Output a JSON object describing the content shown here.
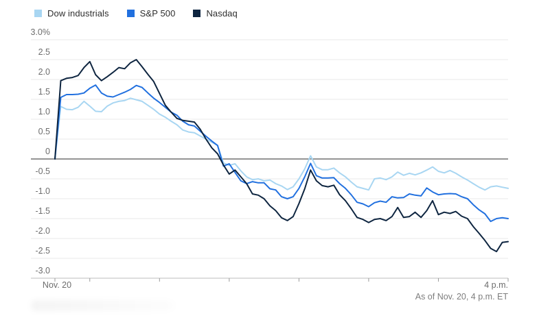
{
  "chart": {
    "legend": {
      "items": [
        {
          "label": "Dow industrials",
          "color": "#a8d6f2"
        },
        {
          "label": "S&P 500",
          "color": "#2170df"
        },
        {
          "label": "Nasdaq",
          "color": "#0e2540"
        }
      ]
    },
    "footnote": "As of Nov. 20, 4 p.m. ET"
  },
  "chart_data": {
    "type": "line",
    "title": "",
    "legend_position": "top-left",
    "grid": true,
    "x": {
      "unit": "minutes since 9:30 a.m. open",
      "interval_minutes": 5,
      "total_minutes": 390,
      "tick_minutes": [
        0,
        30,
        90,
        150,
        210,
        270,
        330,
        390
      ],
      "start_tick_label": "Nov. 20",
      "end_label": "4 p.m."
    },
    "y": {
      "unit": "%",
      "min": -3.0,
      "max": 3.0,
      "step": 0.5,
      "tick_labels": [
        "3.0%",
        "2.5",
        "2.0",
        "1.5",
        "1.0",
        "0.5",
        "0",
        "-0.5",
        "-1.0",
        "-1.5",
        "-2.0",
        "-2.5",
        "-3.0"
      ],
      "zero_line": true
    },
    "series": [
      {
        "name": "Dow industrials",
        "color": "#a8d6f2",
        "values": [
          0,
          1.32,
          1.25,
          1.24,
          1.3,
          1.45,
          1.33,
          1.2,
          1.19,
          1.33,
          1.41,
          1.45,
          1.47,
          1.53,
          1.49,
          1.45,
          1.35,
          1.25,
          1.13,
          1.05,
          0.95,
          0.86,
          0.73,
          0.68,
          0.66,
          0.58,
          0.5,
          0.42,
          0.34,
          -0.1,
          -0.16,
          -0.12,
          -0.3,
          -0.45,
          -0.52,
          -0.5,
          -0.55,
          -0.53,
          -0.62,
          -0.68,
          -0.77,
          -0.7,
          -0.5,
          -0.25,
          0.08,
          -0.2,
          -0.27,
          -0.27,
          -0.23,
          -0.35,
          -0.45,
          -0.58,
          -0.7,
          -0.74,
          -0.78,
          -0.5,
          -0.48,
          -0.52,
          -0.45,
          -0.33,
          -0.41,
          -0.36,
          -0.4,
          -0.35,
          -0.28,
          -0.2,
          -0.31,
          -0.35,
          -0.29,
          -0.36,
          -0.45,
          -0.53,
          -0.62,
          -0.71,
          -0.78,
          -0.7,
          -0.68,
          -0.71,
          -0.74
        ]
      },
      {
        "name": "S&P 500",
        "color": "#2170df",
        "values": [
          0,
          1.55,
          1.62,
          1.62,
          1.63,
          1.66,
          1.78,
          1.86,
          1.66,
          1.58,
          1.56,
          1.62,
          1.68,
          1.75,
          1.85,
          1.8,
          1.66,
          1.53,
          1.42,
          1.3,
          1.18,
          1.1,
          0.95,
          0.86,
          0.83,
          0.7,
          0.57,
          0.45,
          0.34,
          -0.18,
          -0.12,
          -0.34,
          -0.55,
          -0.62,
          -0.57,
          -0.6,
          -0.6,
          -0.75,
          -0.78,
          -0.95,
          -1.0,
          -0.95,
          -0.74,
          -0.45,
          -0.11,
          -0.42,
          -0.48,
          -0.48,
          -0.47,
          -0.62,
          -0.74,
          -0.9,
          -1.09,
          -1.13,
          -1.2,
          -1.1,
          -1.06,
          -1.09,
          -0.95,
          -0.98,
          -0.97,
          -0.88,
          -0.91,
          -0.93,
          -0.73,
          -0.83,
          -0.9,
          -0.88,
          -0.87,
          -0.88,
          -0.95,
          -1.0,
          -1.15,
          -1.28,
          -1.38,
          -1.57,
          -1.5,
          -1.48,
          -1.5
        ]
      },
      {
        "name": "Nasdaq",
        "color": "#0e2540",
        "values": [
          0,
          1.97,
          2.03,
          2.05,
          2.1,
          2.3,
          2.45,
          2.12,
          1.97,
          2.07,
          2.18,
          2.3,
          2.27,
          2.42,
          2.5,
          2.32,
          2.13,
          1.95,
          1.65,
          1.35,
          1.18,
          1.02,
          0.97,
          0.95,
          0.93,
          0.75,
          0.5,
          0.28,
          0.13,
          -0.15,
          -0.38,
          -0.28,
          -0.45,
          -0.62,
          -0.88,
          -0.91,
          -1.0,
          -1.18,
          -1.3,
          -1.48,
          -1.55,
          -1.45,
          -1.12,
          -0.75,
          -0.28,
          -0.55,
          -0.67,
          -0.7,
          -0.66,
          -0.9,
          -1.05,
          -1.25,
          -1.47,
          -1.52,
          -1.6,
          -1.52,
          -1.5,
          -1.55,
          -1.45,
          -1.22,
          -1.47,
          -1.45,
          -1.34,
          -1.47,
          -1.3,
          -1.05,
          -1.4,
          -1.34,
          -1.37,
          -1.32,
          -1.44,
          -1.5,
          -1.7,
          -1.87,
          -2.05,
          -2.25,
          -2.33,
          -2.1,
          -2.08
        ]
      }
    ]
  }
}
